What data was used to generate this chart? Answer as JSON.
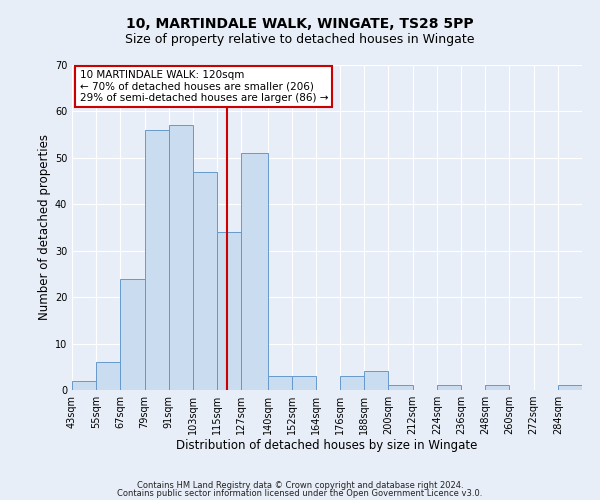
{
  "title1": "10, MARTINDALE WALK, WINGATE, TS28 5PP",
  "title2": "Size of property relative to detached houses in Wingate",
  "xlabel": "Distribution of detached houses by size in Wingate",
  "ylabel": "Number of detached properties",
  "bin_labels": [
    "43sqm",
    "55sqm",
    "67sqm",
    "79sqm",
    "91sqm",
    "103sqm",
    "115sqm",
    "127sqm",
    "140sqm",
    "152sqm",
    "164sqm",
    "176sqm",
    "188sqm",
    "200sqm",
    "212sqm",
    "224sqm",
    "236sqm",
    "248sqm",
    "260sqm",
    "272sqm",
    "284sqm"
  ],
  "bin_edges": [
    43,
    55,
    67,
    79,
    91,
    103,
    115,
    127,
    140,
    152,
    164,
    176,
    188,
    200,
    212,
    224,
    236,
    248,
    260,
    272,
    284,
    296
  ],
  "counts": [
    2,
    6,
    24,
    56,
    57,
    47,
    34,
    51,
    3,
    3,
    0,
    3,
    4,
    1,
    0,
    1,
    0,
    1,
    0,
    0,
    1
  ],
  "bar_facecolor": "#c9dcf0",
  "bar_edgecolor": "#6699cc",
  "vline_x": 120,
  "vline_color": "#cc0000",
  "ylim": [
    0,
    70
  ],
  "yticks": [
    0,
    10,
    20,
    30,
    40,
    50,
    60,
    70
  ],
  "annotation_text": "10 MARTINDALE WALK: 120sqm\n← 70% of detached houses are smaller (206)\n29% of semi-detached houses are larger (86) →",
  "annotation_box_edgecolor": "#cc0000",
  "annotation_box_facecolor": "#ffffff",
  "footer1": "Contains HM Land Registry data © Crown copyright and database right 2024.",
  "footer2": "Contains public sector information licensed under the Open Government Licence v3.0.",
  "background_color": "#e8eef8",
  "plot_bg_color": "#e8eef8",
  "grid_color": "#ffffff",
  "title1_fontsize": 10,
  "title2_fontsize": 9,
  "xlabel_fontsize": 8.5,
  "ylabel_fontsize": 8.5,
  "tick_fontsize": 7,
  "annotation_fontsize": 7.5,
  "footer_fontsize": 6
}
